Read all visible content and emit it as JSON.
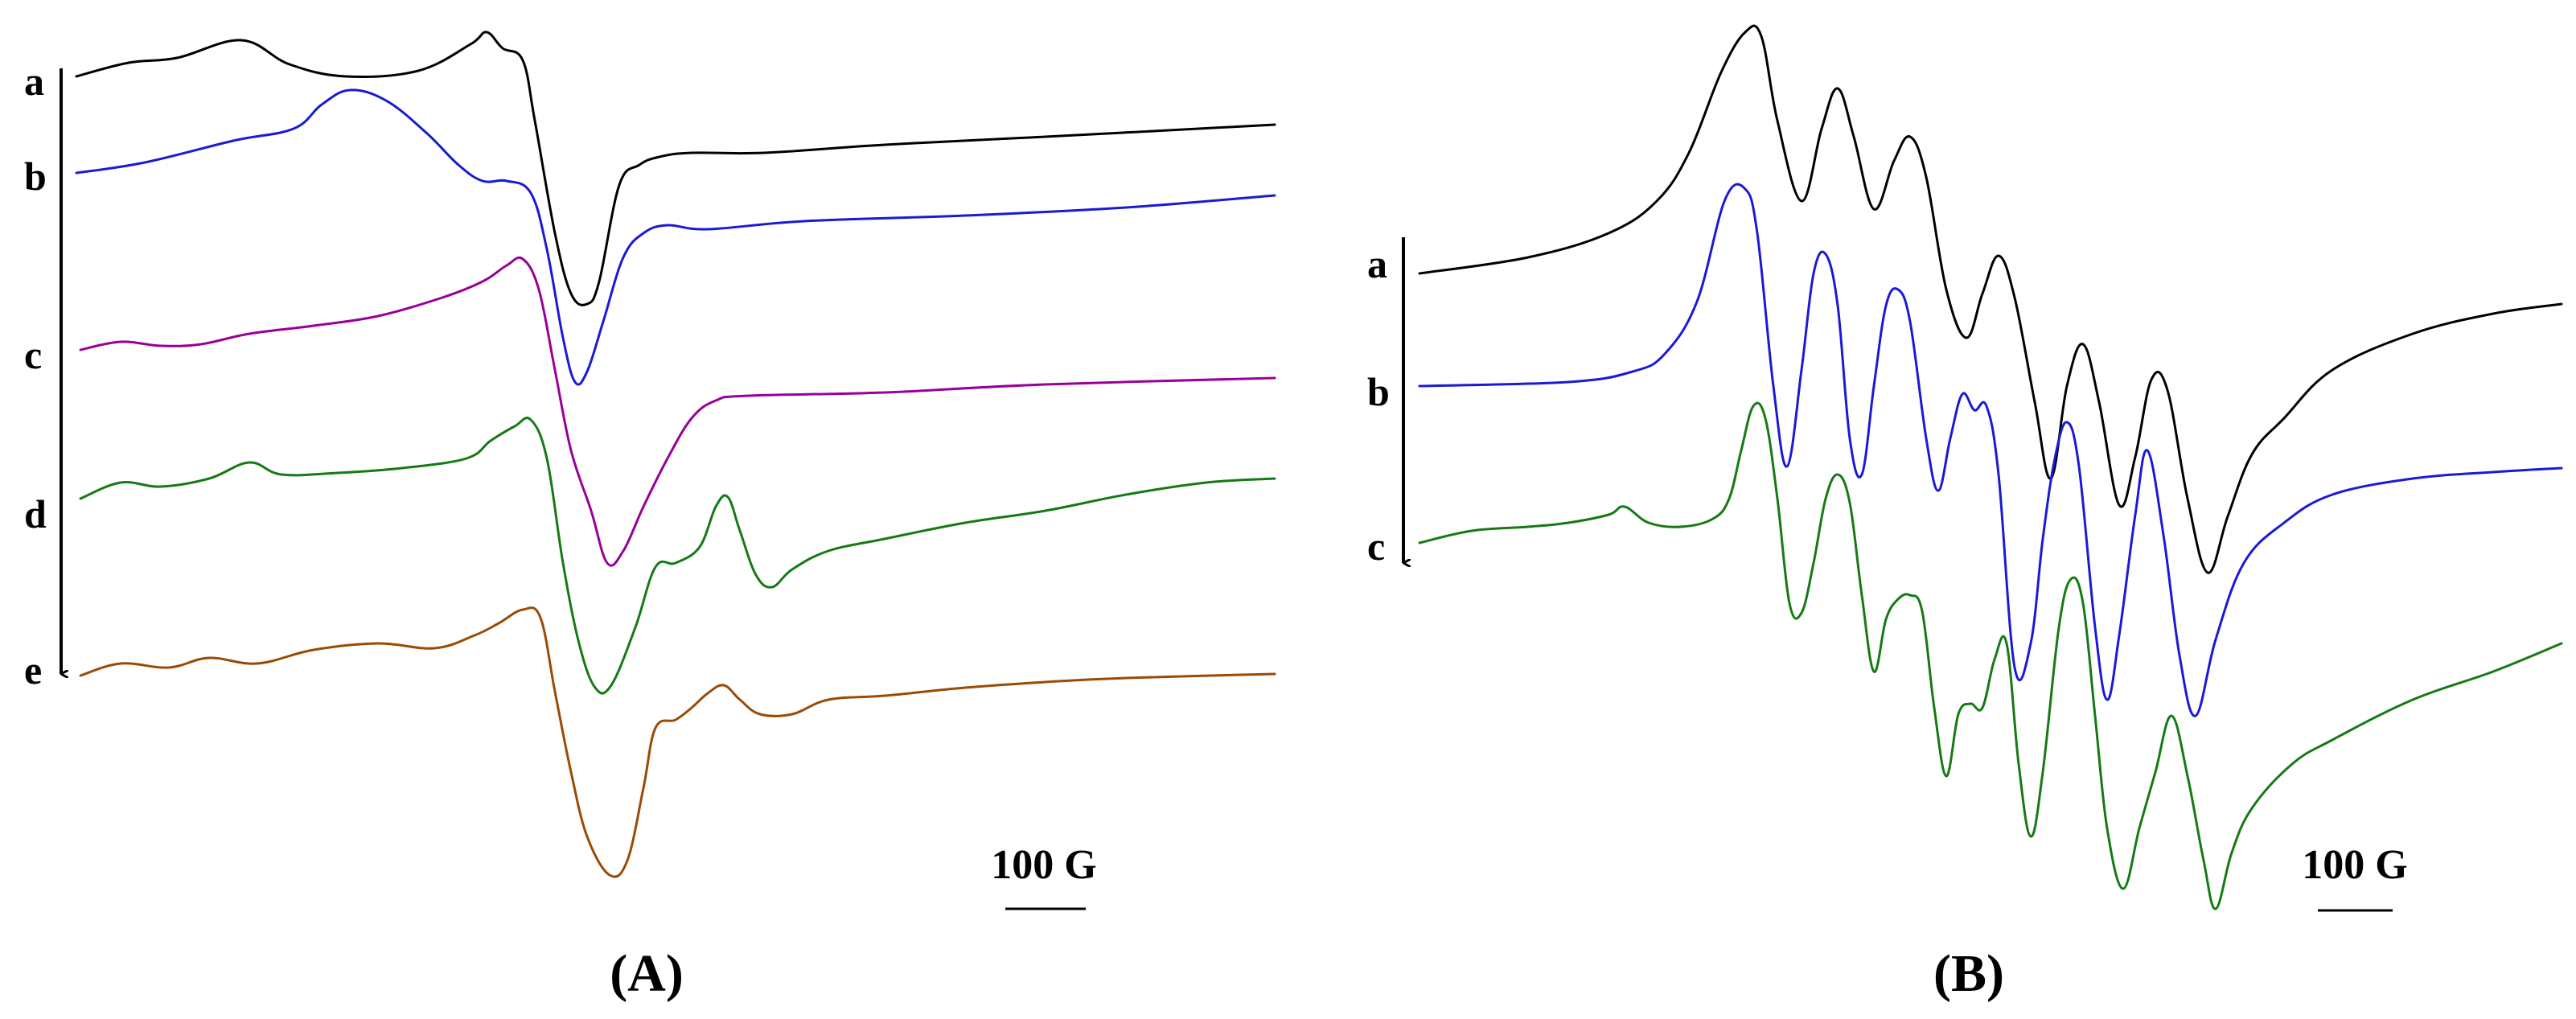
{
  "chart_data": [
    {
      "type": "line",
      "panel_label": "(A)",
      "scale_bar_label": "100 G",
      "trace_order_arrow": "top-to-bottom (a → e)",
      "series": [
        {
          "name": "a",
          "color": "#000000"
        },
        {
          "name": "b",
          "color": "#1a1ad6"
        },
        {
          "name": "c",
          "color": "#990099"
        },
        {
          "name": "d",
          "color": "#157a15"
        },
        {
          "name": "e",
          "color": "#9a4a05"
        }
      ]
    },
    {
      "type": "line",
      "panel_label": "(B)",
      "scale_bar_label": "100 G",
      "trace_order_arrow": "top-to-bottom (a → c)",
      "series": [
        {
          "name": "a",
          "color": "#000000"
        },
        {
          "name": "b",
          "color": "#1a1ad6"
        },
        {
          "name": "c",
          "color": "#157a15"
        }
      ]
    }
  ]
}
